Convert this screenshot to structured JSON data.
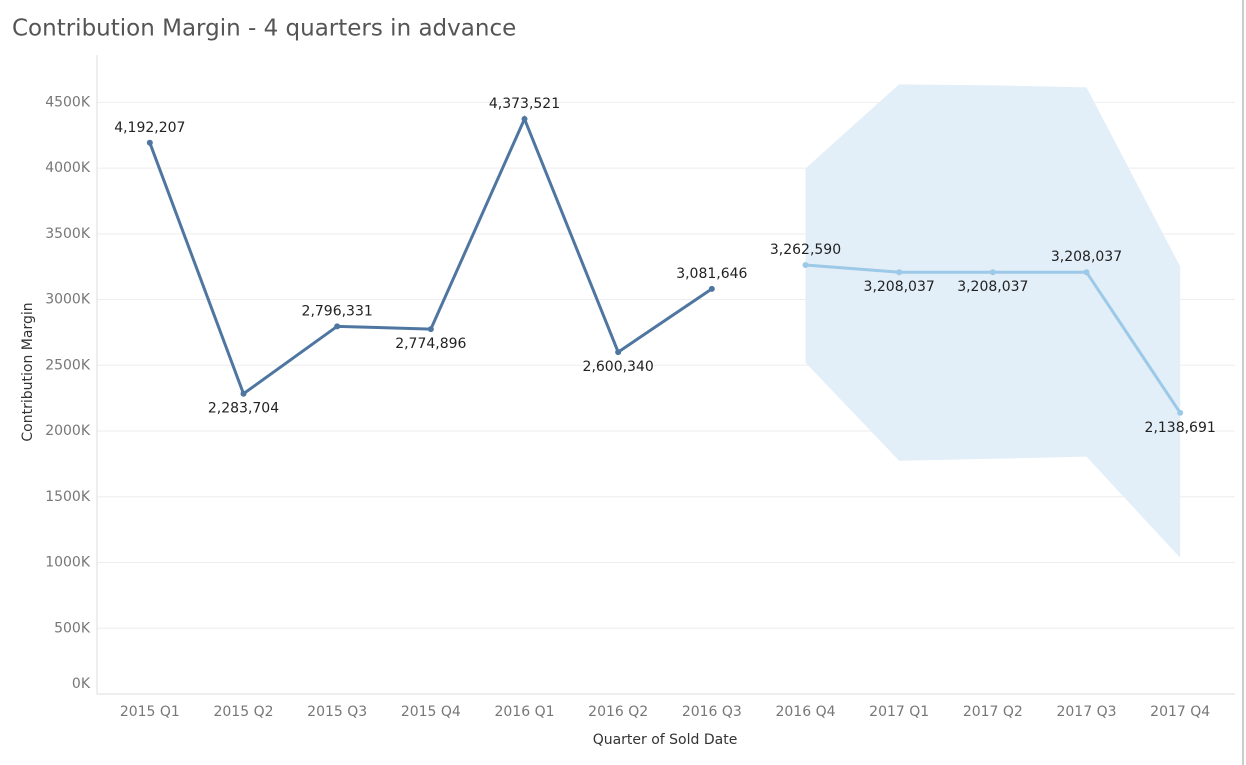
{
  "chart_data": {
    "type": "line",
    "title": "Contribution Margin - 4 quarters in advance",
    "x_label": "Quarter of Sold Date",
    "y_label": "Contribution Margin",
    "categories": [
      "2015 Q1",
      "2015 Q2",
      "2015 Q3",
      "2015 Q4",
      "2016 Q1",
      "2016 Q2",
      "2016 Q3",
      "2016 Q4",
      "2017 Q1",
      "2017 Q2",
      "2017 Q3",
      "2017 Q4"
    ],
    "series": [
      {
        "color": "#4e76a0",
        "values": [
          4192207,
          2283704,
          2796331,
          2774896,
          4373521,
          2600340,
          3081646,
          null,
          null,
          null,
          null,
          null
        ],
        "value_labels": [
          "4,192,207",
          "2,283,704",
          "2,796,331",
          "2,774,896",
          "4,373,521",
          "2,600,340",
          "3,081,646",
          null,
          null,
          null,
          null,
          null
        ]
      },
      {
        "color": "#9dc9e8",
        "values": [
          null,
          null,
          null,
          null,
          null,
          null,
          null,
          3262590,
          3208037,
          3208037,
          3208037,
          2138691
        ],
        "value_labels": [
          null,
          null,
          null,
          null,
          null,
          null,
          null,
          "3,262,590",
          "3,208,037",
          "3,208,037",
          "3,208,037",
          "2,138,691"
        ]
      }
    ],
    "band": {
      "color": "#e2eef8",
      "upper": [
        null,
        null,
        null,
        null,
        null,
        null,
        null,
        3997000,
        4637000,
        4629000,
        4614000,
        3251000
      ],
      "lower": [
        null,
        null,
        null,
        null,
        null,
        null,
        null,
        2520000,
        1774000,
        1789000,
        1805000,
        1036000
      ]
    },
    "ylim": [
      0,
      4860000
    ],
    "yticks": [
      {
        "value": 0,
        "label": "0K"
      },
      {
        "value": 500000,
        "label": "500K"
      },
      {
        "value": 1000000,
        "label": "1000K"
      },
      {
        "value": 1500000,
        "label": "1500K"
      },
      {
        "value": 2000000,
        "label": "2000K"
      },
      {
        "value": 2500000,
        "label": "2500K"
      },
      {
        "value": 3000000,
        "label": "3000K"
      },
      {
        "value": 3500000,
        "label": "3500K"
      },
      {
        "value": 4000000,
        "label": "4000K"
      },
      {
        "value": 4500000,
        "label": "4500K"
      }
    ],
    "grid": true
  }
}
